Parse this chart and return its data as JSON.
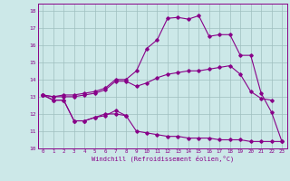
{
  "xlabel": "Windchill (Refroidissement éolien,°C)",
  "bg_color": "#cce8e8",
  "grid_color": "#9fbfbf",
  "line_color": "#880088",
  "xlim": [
    -0.5,
    23.5
  ],
  "ylim": [
    10,
    18.4
  ],
  "xticks": [
    0,
    1,
    2,
    3,
    4,
    5,
    6,
    7,
    8,
    9,
    10,
    11,
    12,
    13,
    14,
    15,
    16,
    17,
    18,
    19,
    20,
    21,
    22,
    23
  ],
  "yticks": [
    10,
    11,
    12,
    13,
    14,
    15,
    16,
    17,
    18
  ],
  "series": [
    {
      "x": [
        0,
        1,
        2,
        3,
        4,
        5,
        6,
        7,
        8
      ],
      "y": [
        13.1,
        12.8,
        12.8,
        11.6,
        11.6,
        11.8,
        11.9,
        12.2,
        11.9
      ]
    },
    {
      "x": [
        0,
        1,
        2,
        3,
        4,
        5,
        6,
        7,
        8,
        9,
        10,
        11,
        12,
        13,
        14,
        15,
        16,
        17,
        18,
        19,
        20,
        21,
        22,
        23
      ],
      "y": [
        13.1,
        12.8,
        12.8,
        11.6,
        11.6,
        11.8,
        12.0,
        12.0,
        11.9,
        11.0,
        10.9,
        10.8,
        10.7,
        10.7,
        10.6,
        10.6,
        10.6,
        10.5,
        10.5,
        10.5,
        10.4,
        10.4,
        10.4,
        10.4
      ]
    },
    {
      "x": [
        0,
        1,
        2,
        3,
        4,
        5,
        6,
        7,
        8,
        9,
        10,
        11,
        12,
        13,
        14,
        15,
        16,
        17,
        18,
        19,
        20,
        21,
        22
      ],
      "y": [
        13.1,
        13.0,
        13.0,
        13.0,
        13.1,
        13.2,
        13.4,
        13.9,
        13.9,
        13.6,
        13.8,
        14.1,
        14.3,
        14.4,
        14.5,
        14.5,
        14.6,
        14.7,
        14.8,
        14.3,
        13.3,
        12.9,
        12.8
      ]
    },
    {
      "x": [
        0,
        1,
        2,
        3,
        4,
        5,
        6,
        7,
        8,
        9,
        10,
        11,
        12,
        13,
        14,
        15,
        16,
        17,
        18,
        19,
        20,
        21,
        22,
        23
      ],
      "y": [
        13.1,
        13.0,
        13.1,
        13.1,
        13.2,
        13.3,
        13.5,
        14.0,
        14.0,
        14.5,
        15.8,
        16.3,
        17.55,
        17.6,
        17.5,
        17.7,
        16.5,
        16.6,
        16.6,
        15.4,
        15.4,
        13.2,
        12.1,
        10.4
      ]
    }
  ]
}
